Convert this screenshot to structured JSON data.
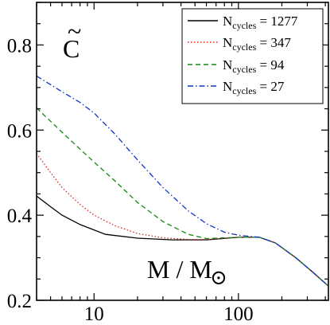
{
  "chart_data": {
    "type": "line",
    "title": "",
    "ylabel_symbol": "C",
    "ylabel_accent": "~",
    "xlabel_main": "M / M",
    "xlabel_sub": "⊙",
    "xscale": "log",
    "xlim": [
      4,
      420
    ],
    "ylim": [
      0.2,
      0.9
    ],
    "grid": false,
    "legend_position": "top-right",
    "x_ticks": [
      10,
      100
    ],
    "x_tick_labels": [
      "10",
      "100"
    ],
    "y_ticks": [
      0.2,
      0.4,
      0.6,
      0.8
    ],
    "y_tick_labels": [
      "0.2",
      "0.4",
      "0.6",
      "0.8"
    ],
    "series": [
      {
        "name_prefix": "N",
        "name_sub": "cycles",
        "name_value": " = 1277",
        "color": "#000000",
        "dash": "solid",
        "x": [
          4,
          5,
          6,
          8,
          12,
          20,
          35,
          60,
          100,
          140,
          180,
          250,
          330,
          415
        ],
        "y": [
          0.445,
          0.42,
          0.4,
          0.378,
          0.355,
          0.346,
          0.342,
          0.342,
          0.348,
          0.348,
          0.335,
          0.3,
          0.265,
          0.235
        ]
      },
      {
        "name_prefix": "N",
        "name_sub": "cycles",
        "name_value": " = 347",
        "color": "#dd2222",
        "dash": "dotted",
        "x": [
          4,
          5,
          6,
          8,
          10,
          14,
          20,
          30,
          45,
          60,
          100,
          140,
          180,
          250,
          330,
          415
        ],
        "y": [
          0.545,
          0.5,
          0.465,
          0.425,
          0.4,
          0.375,
          0.357,
          0.347,
          0.343,
          0.343,
          0.348,
          0.348,
          0.335,
          0.3,
          0.265,
          0.235
        ]
      },
      {
        "name_prefix": "N",
        "name_sub": "cycles",
        "name_value": " = 94",
        "color": "#118811",
        "dash": "dashed",
        "x": [
          4,
          6,
          8,
          10,
          14,
          20,
          30,
          45,
          60,
          100,
          140,
          180,
          250,
          330,
          415
        ],
        "y": [
          0.652,
          0.595,
          0.555,
          0.525,
          0.48,
          0.43,
          0.385,
          0.355,
          0.345,
          0.348,
          0.348,
          0.335,
          0.3,
          0.265,
          0.235
        ]
      },
      {
        "name_prefix": "N",
        "name_sub": "cycles",
        "name_value": " = 27",
        "color": "#1133cc",
        "dash": "dashdot",
        "x": [
          4,
          6,
          8,
          10,
          14,
          20,
          30,
          45,
          60,
          80,
          100,
          140,
          180,
          250,
          330,
          415
        ],
        "y": [
          0.727,
          0.69,
          0.665,
          0.64,
          0.59,
          0.53,
          0.465,
          0.41,
          0.38,
          0.36,
          0.353,
          0.348,
          0.335,
          0.3,
          0.265,
          0.235
        ]
      }
    ]
  }
}
